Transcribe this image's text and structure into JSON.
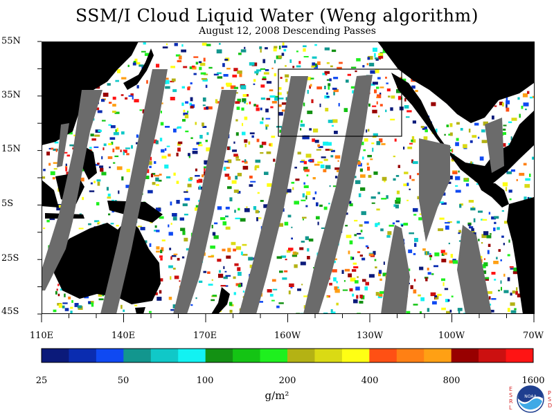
{
  "title": "SSM/I Cloud Liquid Water (Weng algorithm)",
  "subtitle": "August 12, 2008  Descending Passes",
  "map": {
    "lat_labels": [
      "55N",
      "35N",
      "15N",
      "5S",
      "25S",
      "45S"
    ],
    "lon_labels": [
      "110E",
      "140E",
      "170E",
      "160W",
      "130W",
      "100W",
      "70W"
    ]
  },
  "colorbar": {
    "labels": [
      "25",
      "50",
      "100",
      "200",
      "400",
      "800",
      "1600"
    ],
    "units": "g/m²",
    "colors": [
      "#0b1a7a",
      "#0a2cb0",
      "#0f49f2",
      "#12968e",
      "#10c8c8",
      "#12f2f2",
      "#139113",
      "#14c414",
      "#1ef01e",
      "#b4b214",
      "#dada14",
      "#ffff14",
      "#ff5014",
      "#ff8014",
      "#ffa014",
      "#980000",
      "#cc1010",
      "#ff1414"
    ]
  },
  "logo": {
    "left_letters": [
      "E",
      "S",
      "R",
      "L"
    ],
    "right_letters": [
      "P",
      "S",
      "D"
    ],
    "text": "NOAA"
  },
  "colors": {
    "land": "#000000",
    "swath_gap": "#6b6b6b",
    "ocean_clear": "#ffffff"
  }
}
